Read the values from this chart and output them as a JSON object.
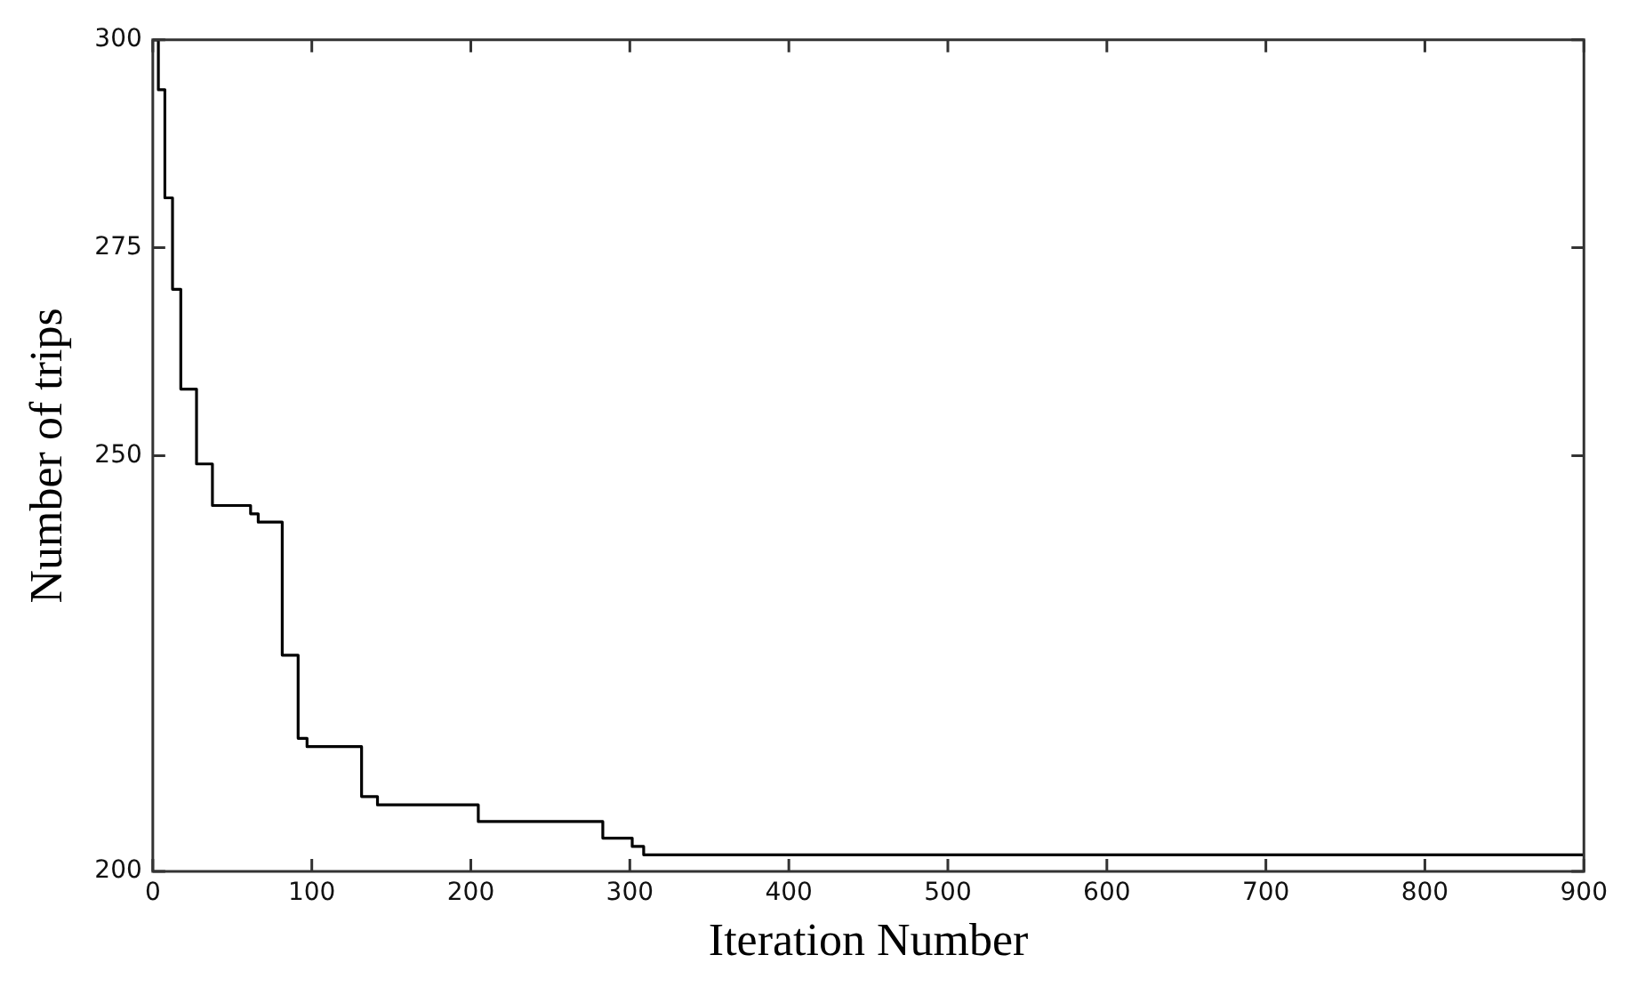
{
  "chart_data": {
    "type": "step",
    "xlabel": "Iteration Number",
    "ylabel": "Number of trips",
    "x": [
      0,
      3.5,
      7.6,
      12.4,
      17.6,
      27.5,
      37.5,
      61.5,
      66.3,
      81.4,
      91.4,
      97,
      131.3,
      141.3,
      204.7,
      283,
      301.5,
      308.7,
      900
    ],
    "series": [
      {
        "color": "#000000",
        "values": [
          300,
          294,
          281,
          270,
          258,
          249,
          244,
          243,
          242,
          226,
          216,
          215,
          209,
          208,
          206,
          204,
          203,
          202,
          202
        ]
      }
    ],
    "xlim": [
      0,
      900
    ],
    "xticks": [
      0,
      100,
      200,
      300,
      400,
      500,
      600,
      700,
      800,
      900
    ],
    "ylim": [
      200,
      300
    ],
    "yticks": [
      200,
      250,
      275,
      300
    ],
    "grid": false,
    "legend": false,
    "marker": "none",
    "line_style": "solid"
  }
}
